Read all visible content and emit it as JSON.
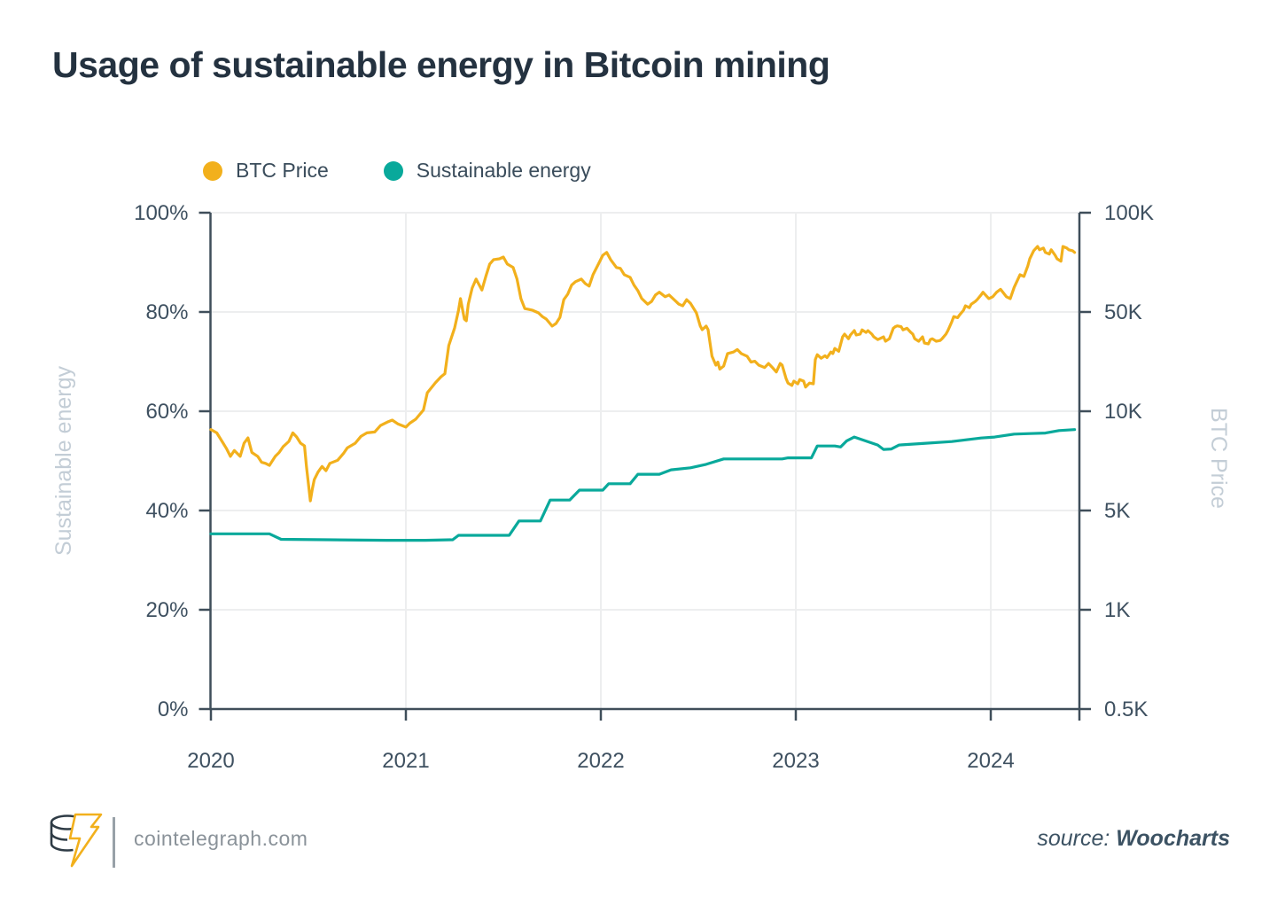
{
  "footer": {
    "site": "cointelegraph.com",
    "source_prefix": "source:",
    "source_name": "Woocharts"
  },
  "colors": {
    "btc_yellow": "#F2B01C",
    "energy_teal": "#09A99B",
    "title_text": "#243240",
    "tick_text": "#3E5060",
    "axis_line": "#3F4E5A",
    "gridline": "#EDEEEF",
    "muted_axis_title": "#C3CDD6",
    "footer_text": "#8A9299",
    "source_text": "#3C5263"
  },
  "chart_data": {
    "type": "line",
    "title": "Usage of sustainable energy in Bitcoin mining",
    "x_axis": {
      "range": [
        2020,
        2024.46
      ],
      "ticks": [
        {
          "label": "2020",
          "value": 2020
        },
        {
          "label": "2021",
          "value": 2021
        },
        {
          "label": "2022",
          "value": 2022
        },
        {
          "label": "2023",
          "value": 2023
        },
        {
          "label": "2024",
          "value": 2024
        }
      ]
    },
    "left_axis": {
      "title": "Sustainable energy",
      "unit": "%",
      "range": [
        0,
        100
      ],
      "ticks": [
        {
          "label": "0%",
          "value": 0
        },
        {
          "label": "20%",
          "value": 20
        },
        {
          "label": "40%",
          "value": 40
        },
        {
          "label": "60%",
          "value": 60
        },
        {
          "label": "80%",
          "value": 80
        },
        {
          "label": "100%",
          "value": 100
        }
      ]
    },
    "right_axis": {
      "title": "BTC Price",
      "unit": "USD",
      "scale": "piecewise-log",
      "ticks": [
        {
          "label": "0.5K",
          "value": 500
        },
        {
          "label": "1K",
          "value": 1000
        },
        {
          "label": "5K",
          "value": 5000
        },
        {
          "label": "10K",
          "value": 10000
        },
        {
          "label": "50K",
          "value": 50000
        },
        {
          "label": "100K",
          "value": 100000
        }
      ]
    },
    "legend_position": "top-left",
    "grid": true,
    "series": [
      {
        "name": "Sustainable energy",
        "id": "sustainable-energy-line",
        "axis": "left",
        "color": "#09A99B",
        "points": [
          [
            2020.0,
            35.3
          ],
          [
            2020.3,
            35.3
          ],
          [
            2020.36,
            34.2
          ],
          [
            2020.6,
            34.1
          ],
          [
            2020.9,
            34.0
          ],
          [
            2021.1,
            34.0
          ],
          [
            2021.24,
            34.1
          ],
          [
            2021.27,
            35.0
          ],
          [
            2021.53,
            35.0
          ],
          [
            2021.58,
            37.9
          ],
          [
            2021.69,
            37.9
          ],
          [
            2021.74,
            42.1
          ],
          [
            2021.84,
            42.1
          ],
          [
            2021.89,
            44.1
          ],
          [
            2022.01,
            44.1
          ],
          [
            2022.04,
            45.4
          ],
          [
            2022.15,
            45.4
          ],
          [
            2022.19,
            47.3
          ],
          [
            2022.3,
            47.3
          ],
          [
            2022.36,
            48.2
          ],
          [
            2022.46,
            48.6
          ],
          [
            2022.54,
            49.3
          ],
          [
            2022.63,
            50.4
          ],
          [
            2022.93,
            50.4
          ],
          [
            2022.96,
            50.6
          ],
          [
            2023.08,
            50.6
          ],
          [
            2023.11,
            53.0
          ],
          [
            2023.2,
            53.0
          ],
          [
            2023.23,
            52.8
          ],
          [
            2023.26,
            54.0
          ],
          [
            2023.3,
            54.8
          ],
          [
            2023.36,
            54.0
          ],
          [
            2023.42,
            53.2
          ],
          [
            2023.45,
            52.3
          ],
          [
            2023.49,
            52.4
          ],
          [
            2023.53,
            53.2
          ],
          [
            2023.65,
            53.5
          ],
          [
            2023.8,
            53.9
          ],
          [
            2023.95,
            54.6
          ],
          [
            2024.02,
            54.8
          ],
          [
            2024.12,
            55.4
          ],
          [
            2024.2,
            55.5
          ],
          [
            2024.28,
            55.6
          ],
          [
            2024.35,
            56.1
          ],
          [
            2024.43,
            56.3
          ]
        ]
      },
      {
        "name": "BTC Price",
        "id": "btc-price-line",
        "axis": "right",
        "color": "#F2B01C",
        "points": [
          [
            2020.0,
            8800
          ],
          [
            2020.03,
            8600
          ],
          [
            2020.08,
            7700
          ],
          [
            2020.1,
            7300
          ],
          [
            2020.12,
            7600
          ],
          [
            2020.15,
            7300
          ],
          [
            2020.17,
            8000
          ],
          [
            2020.19,
            8300
          ],
          [
            2020.21,
            7500
          ],
          [
            2020.24,
            7300
          ],
          [
            2020.26,
            7000
          ],
          [
            2020.28,
            6950
          ],
          [
            2020.3,
            6850
          ],
          [
            2020.33,
            7300
          ],
          [
            2020.35,
            7500
          ],
          [
            2020.37,
            7800
          ],
          [
            2020.4,
            8100
          ],
          [
            2020.42,
            8600
          ],
          [
            2020.44,
            8350
          ],
          [
            2020.46,
            8000
          ],
          [
            2020.48,
            7850
          ],
          [
            2020.49,
            6800
          ],
          [
            2020.51,
            5350
          ],
          [
            2020.52,
            5800
          ],
          [
            2020.53,
            6200
          ],
          [
            2020.55,
            6550
          ],
          [
            2020.57,
            6800
          ],
          [
            2020.59,
            6600
          ],
          [
            2020.61,
            6950
          ],
          [
            2020.65,
            7100
          ],
          [
            2020.68,
            7450
          ],
          [
            2020.7,
            7750
          ],
          [
            2020.74,
            8000
          ],
          [
            2020.77,
            8400
          ],
          [
            2020.8,
            8600
          ],
          [
            2020.84,
            8650
          ],
          [
            2020.87,
            9050
          ],
          [
            2020.91,
            9300
          ],
          [
            2020.93,
            9400
          ],
          [
            2020.96,
            9150
          ],
          [
            2021.0,
            8950
          ],
          [
            2021.02,
            9200
          ],
          [
            2021.05,
            9450
          ],
          [
            2021.09,
            10200
          ],
          [
            2021.11,
            13500
          ],
          [
            2021.15,
            15800
          ],
          [
            2021.18,
            17500
          ],
          [
            2021.2,
            18400
          ],
          [
            2021.22,
            29000
          ],
          [
            2021.25,
            38600
          ],
          [
            2021.27,
            50600
          ],
          [
            2021.28,
            54900
          ],
          [
            2021.3,
            44600
          ],
          [
            2021.31,
            43400
          ],
          [
            2021.32,
            52800
          ],
          [
            2021.34,
            59100
          ],
          [
            2021.36,
            62900
          ],
          [
            2021.39,
            58300
          ],
          [
            2021.41,
            64100
          ],
          [
            2021.43,
            69900
          ],
          [
            2021.45,
            72100
          ],
          [
            2021.48,
            72500
          ],
          [
            2021.5,
            73400
          ],
          [
            2021.52,
            69900
          ],
          [
            2021.55,
            68200
          ],
          [
            2021.57,
            62900
          ],
          [
            2021.59,
            54900
          ],
          [
            2021.61,
            51200
          ],
          [
            2021.63,
            50900
          ],
          [
            2021.65,
            50600
          ],
          [
            2021.68,
            49300
          ],
          [
            2021.7,
            46400
          ],
          [
            2021.72,
            44600
          ],
          [
            2021.75,
            39800
          ],
          [
            2021.77,
            41500
          ],
          [
            2021.79,
            45800
          ],
          [
            2021.81,
            54500
          ],
          [
            2021.83,
            56600
          ],
          [
            2021.85,
            60300
          ],
          [
            2021.87,
            61800
          ],
          [
            2021.9,
            62900
          ],
          [
            2021.92,
            61000
          ],
          [
            2021.94,
            59900
          ],
          [
            2021.96,
            64900
          ],
          [
            2021.99,
            70300
          ],
          [
            2022.01,
            74300
          ],
          [
            2022.03,
            75800
          ],
          [
            2022.05,
            72100
          ],
          [
            2022.08,
            68200
          ],
          [
            2022.1,
            67800
          ],
          [
            2022.12,
            64900
          ],
          [
            2022.15,
            63700
          ],
          [
            2022.17,
            60300
          ],
          [
            2022.19,
            58000
          ],
          [
            2022.21,
            54900
          ],
          [
            2022.24,
            52800
          ],
          [
            2022.26,
            53800
          ],
          [
            2022.28,
            56300
          ],
          [
            2022.3,
            57400
          ],
          [
            2022.33,
            55600
          ],
          [
            2022.35,
            56300
          ],
          [
            2022.37,
            54900
          ],
          [
            2022.4,
            52800
          ],
          [
            2022.42,
            52200
          ],
          [
            2022.44,
            54500
          ],
          [
            2022.46,
            53100
          ],
          [
            2022.49,
            49300
          ],
          [
            2022.51,
            39800
          ],
          [
            2022.52,
            37500
          ],
          [
            2022.54,
            39800
          ],
          [
            2022.55,
            37500
          ],
          [
            2022.57,
            24400
          ],
          [
            2022.59,
            21100
          ],
          [
            2022.6,
            22200
          ],
          [
            2022.61,
            19800
          ],
          [
            2022.63,
            20800
          ],
          [
            2022.65,
            25500
          ],
          [
            2022.68,
            26100
          ],
          [
            2022.7,
            27200
          ],
          [
            2022.72,
            25500
          ],
          [
            2022.75,
            24400
          ],
          [
            2022.77,
            22200
          ],
          [
            2022.79,
            22500
          ],
          [
            2022.81,
            21100
          ],
          [
            2022.84,
            20300
          ],
          [
            2022.86,
            21700
          ],
          [
            2022.88,
            20300
          ],
          [
            2022.9,
            18900
          ],
          [
            2022.92,
            21700
          ],
          [
            2022.93,
            21100
          ],
          [
            2022.95,
            17000
          ],
          [
            2022.96,
            15800
          ],
          [
            2022.98,
            15200
          ],
          [
            2022.99,
            16300
          ],
          [
            2023.01,
            15600
          ],
          [
            2023.02,
            16700
          ],
          [
            2023.04,
            16300
          ],
          [
            2023.05,
            14800
          ],
          [
            2023.07,
            15800
          ],
          [
            2023.09,
            15600
          ],
          [
            2023.1,
            23100
          ],
          [
            2023.11,
            25000
          ],
          [
            2023.13,
            23600
          ],
          [
            2023.15,
            24600
          ],
          [
            2023.16,
            23900
          ],
          [
            2023.18,
            26100
          ],
          [
            2023.19,
            25500
          ],
          [
            2023.2,
            27700
          ],
          [
            2023.22,
            26400
          ],
          [
            2023.24,
            33400
          ],
          [
            2023.25,
            34900
          ],
          [
            2023.27,
            32400
          ],
          [
            2023.28,
            34400
          ],
          [
            2023.3,
            37000
          ],
          [
            2023.31,
            34400
          ],
          [
            2023.33,
            34900
          ],
          [
            2023.34,
            37400
          ],
          [
            2023.36,
            35900
          ],
          [
            2023.37,
            37000
          ],
          [
            2023.39,
            34900
          ],
          [
            2023.4,
            33400
          ],
          [
            2023.42,
            32000
          ],
          [
            2023.43,
            32400
          ],
          [
            2023.45,
            33400
          ],
          [
            2023.46,
            31100
          ],
          [
            2023.48,
            32400
          ],
          [
            2023.5,
            38400
          ],
          [
            2023.51,
            39400
          ],
          [
            2023.52,
            39900
          ],
          [
            2023.54,
            39400
          ],
          [
            2023.55,
            37400
          ],
          [
            2023.57,
            38400
          ],
          [
            2023.59,
            35900
          ],
          [
            2023.6,
            34900
          ],
          [
            2023.61,
            32400
          ],
          [
            2023.63,
            31100
          ],
          [
            2023.65,
            33400
          ],
          [
            2023.66,
            30200
          ],
          [
            2023.68,
            29800
          ],
          [
            2023.69,
            32000
          ],
          [
            2023.7,
            32400
          ],
          [
            2023.72,
            31100
          ],
          [
            2023.74,
            31500
          ],
          [
            2023.75,
            32400
          ],
          [
            2023.77,
            34900
          ],
          [
            2023.78,
            37000
          ],
          [
            2023.8,
            42600
          ],
          [
            2023.81,
            46400
          ],
          [
            2023.83,
            45600
          ],
          [
            2023.84,
            47700
          ],
          [
            2023.86,
            50600
          ],
          [
            2023.87,
            52200
          ],
          [
            2023.89,
            51500
          ],
          [
            2023.9,
            52800
          ],
          [
            2023.92,
            53800
          ],
          [
            2023.93,
            54500
          ],
          [
            2023.95,
            56300
          ],
          [
            2023.96,
            57400
          ],
          [
            2023.99,
            54900
          ],
          [
            2024.01,
            55600
          ],
          [
            2024.03,
            57400
          ],
          [
            2024.05,
            58600
          ],
          [
            2024.08,
            55600
          ],
          [
            2024.1,
            54900
          ],
          [
            2024.12,
            59400
          ],
          [
            2024.15,
            64900
          ],
          [
            2024.17,
            64100
          ],
          [
            2024.19,
            69000
          ],
          [
            2024.2,
            72500
          ],
          [
            2024.22,
            76700
          ],
          [
            2024.24,
            79000
          ],
          [
            2024.25,
            77200
          ],
          [
            2024.27,
            78100
          ],
          [
            2024.28,
            75800
          ],
          [
            2024.3,
            74900
          ],
          [
            2024.31,
            77200
          ],
          [
            2024.33,
            74300
          ],
          [
            2024.34,
            72500
          ],
          [
            2024.36,
            71300
          ],
          [
            2024.37,
            79000
          ],
          [
            2024.39,
            78100
          ],
          [
            2024.4,
            77200
          ],
          [
            2024.42,
            76700
          ],
          [
            2024.43,
            75800
          ]
        ]
      }
    ]
  }
}
